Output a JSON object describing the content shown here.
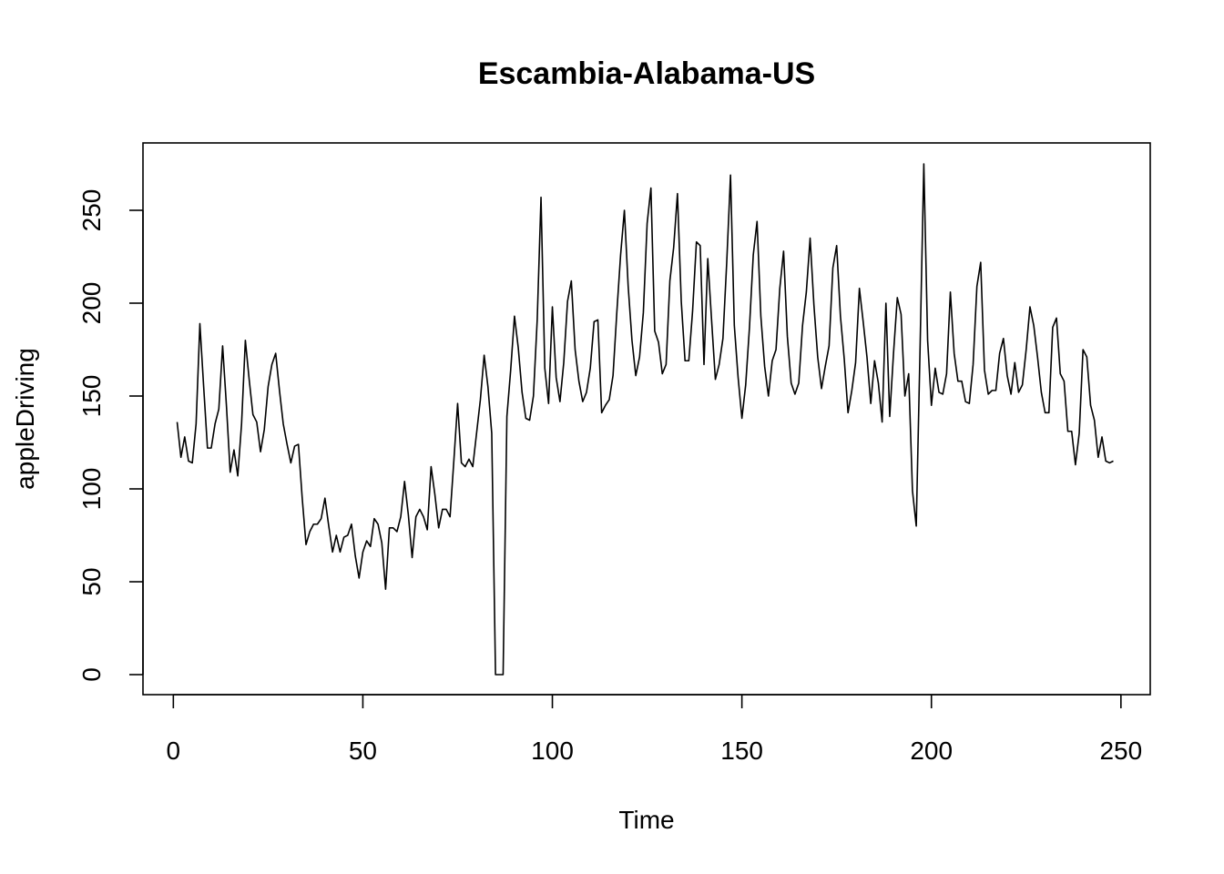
{
  "chart_data": {
    "type": "line",
    "title": "Escambia-Alabama-US",
    "xlabel": "Time",
    "ylabel": "appleDriving",
    "xlim": [
      1,
      248
    ],
    "ylim": [
      0,
      275
    ],
    "x_ticks": [
      0,
      50,
      100,
      150,
      200,
      250
    ],
    "y_ticks": [
      0,
      50,
      100,
      150,
      200,
      250
    ],
    "grid": false,
    "legend": "none",
    "line_color": "#000000",
    "series": [
      {
        "values": [
          136,
          117,
          128,
          115,
          114,
          135,
          189,
          155,
          122,
          122,
          135,
          143,
          177,
          145,
          109,
          121,
          107,
          135,
          180,
          159,
          140,
          136,
          120,
          132,
          155,
          167,
          173,
          153,
          135,
          124,
          114,
          123,
          124,
          95,
          70,
          77,
          81,
          81,
          84,
          95,
          80,
          66,
          75,
          66,
          74,
          75,
          81,
          64,
          52,
          66,
          72,
          69,
          84,
          81,
          71,
          46,
          79,
          79,
          77,
          85,
          104,
          86,
          63,
          85,
          89,
          85,
          78,
          112,
          97,
          79,
          89,
          89,
          85,
          115,
          146,
          114,
          112,
          116,
          112,
          130,
          148,
          172,
          155,
          130,
          0,
          0,
          0,
          139,
          164,
          193,
          176,
          152,
          138,
          137,
          150,
          191,
          257,
          165,
          146,
          198,
          160,
          147,
          168,
          201,
          212,
          175,
          158,
          147,
          152,
          165,
          190,
          191,
          141,
          145,
          148,
          161,
          195,
          226,
          250,
          209,
          180,
          161,
          171,
          195,
          243,
          262,
          185,
          179,
          162,
          167,
          212,
          230,
          259,
          201,
          169,
          169,
          196,
          233,
          231,
          167,
          224,
          191,
          159,
          167,
          181,
          222,
          269,
          188,
          160,
          138,
          156,
          187,
          226,
          244,
          193,
          166,
          150,
          169,
          175,
          208,
          228,
          182,
          157,
          151,
          157,
          188,
          206,
          235,
          199,
          171,
          154,
          166,
          177,
          219,
          231,
          193,
          170,
          141,
          153,
          168,
          208,
          190,
          171,
          146,
          169,
          157,
          136,
          200,
          139,
          173,
          203,
          194,
          150,
          162,
          99,
          80,
          175,
          275,
          180,
          145,
          165,
          152,
          151,
          162,
          206,
          173,
          158,
          158,
          147,
          146,
          167,
          209,
          222,
          164,
          151,
          153,
          153,
          173,
          181,
          161,
          151,
          168,
          152,
          156,
          175,
          198,
          188,
          171,
          152,
          141,
          141,
          187,
          192,
          162,
          158,
          131,
          131,
          113,
          130,
          175,
          171,
          145,
          137,
          117,
          128,
          115,
          114,
          115
        ]
      }
    ]
  }
}
